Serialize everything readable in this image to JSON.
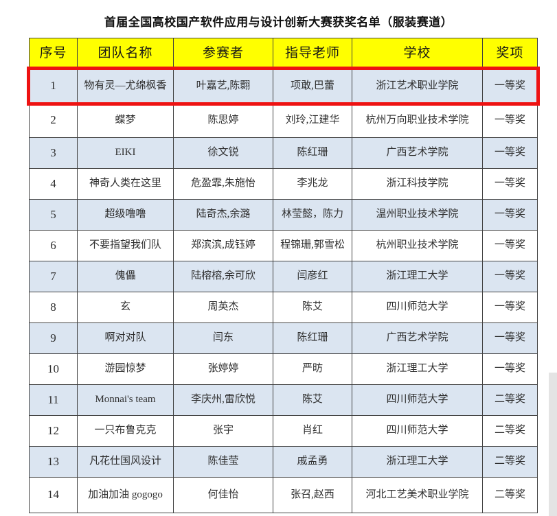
{
  "title": "首届全国高校国产软件应用与设计创新大赛获奖名单（服装赛道）",
  "colors": {
    "header_bg": "#ffff00",
    "alt_row_bg": "#dbe5f1",
    "highlight_border": "#ee1212"
  },
  "table": {
    "headers": [
      "序号",
      "团队名称",
      "参赛者",
      "指导老师",
      "学校",
      "奖项"
    ],
    "rows": [
      {
        "no": "1",
        "team": "物有灵—尤绵枫香",
        "participants": "叶嘉艺,陈翾",
        "teachers": "项敢,巴蕾",
        "school": "浙江艺术职业学院",
        "award": "一等奖",
        "highlighted": true
      },
      {
        "no": "2",
        "team": "蝶梦",
        "participants": "陈思婷",
        "teachers": "刘玲,江建华",
        "school": "杭州万向职业技术学院",
        "award": "一等奖",
        "highlighted": false
      },
      {
        "no": "3",
        "team": "EIKI",
        "participants": "徐文锐",
        "teachers": "陈红珊",
        "school": "广西艺术学院",
        "award": "一等奖",
        "highlighted": false
      },
      {
        "no": "4",
        "team": "神奇人类在这里",
        "participants": "危盈霏,朱施怡",
        "teachers": "李兆龙",
        "school": "浙江科技学院",
        "award": "一等奖",
        "highlighted": false
      },
      {
        "no": "5",
        "team": "超级噜噜",
        "participants": "陆奇杰,余潞",
        "teachers": "林莹懿，陈力",
        "school": "温州职业技术学院",
        "award": "一等奖",
        "highlighted": false
      },
      {
        "no": "6",
        "team": "不要指望我们队",
        "participants": "郑滨滨,成钰婷",
        "teachers": "程锦珊,郭雪松",
        "school": "杭州职业技术学院",
        "award": "一等奖",
        "highlighted": false
      },
      {
        "no": "7",
        "team": "傀儡",
        "participants": "陆榕榕,余可欣",
        "teachers": "闫彦红",
        "school": "浙江理工大学",
        "award": "一等奖",
        "highlighted": false
      },
      {
        "no": "8",
        "team": "玄",
        "participants": "周英杰",
        "teachers": "陈艾",
        "school": "四川师范大学",
        "award": "一等奖",
        "highlighted": false
      },
      {
        "no": "9",
        "team": "啊对对队",
        "participants": "闫东",
        "teachers": "陈红珊",
        "school": "广西艺术学院",
        "award": "一等奖",
        "highlighted": false
      },
      {
        "no": "10",
        "team": "游园惊梦",
        "participants": "张婷婷",
        "teachers": "严昉",
        "school": "浙江理工大学",
        "award": "一等奖",
        "highlighted": false
      },
      {
        "no": "11",
        "team": "Monnai's team",
        "participants": "李庆州,雷欣悦",
        "teachers": "陈艾",
        "school": "四川师范大学",
        "award": "二等奖",
        "highlighted": false
      },
      {
        "no": "12",
        "team": "一只布鲁克克",
        "participants": "张宇",
        "teachers": "肖红",
        "school": "四川师范大学",
        "award": "二等奖",
        "highlighted": false
      },
      {
        "no": "13",
        "team": "凡花仕国风设计",
        "participants": "陈佳莹",
        "teachers": "戚孟勇",
        "school": "浙江理工大学",
        "award": "二等奖",
        "highlighted": false
      },
      {
        "no": "14",
        "team": "加油加油 gogogo",
        "participants": "何佳怡",
        "teachers": "张召,赵西",
        "school": "河北工艺美术职业学院",
        "award": "二等奖",
        "highlighted": false
      }
    ]
  }
}
